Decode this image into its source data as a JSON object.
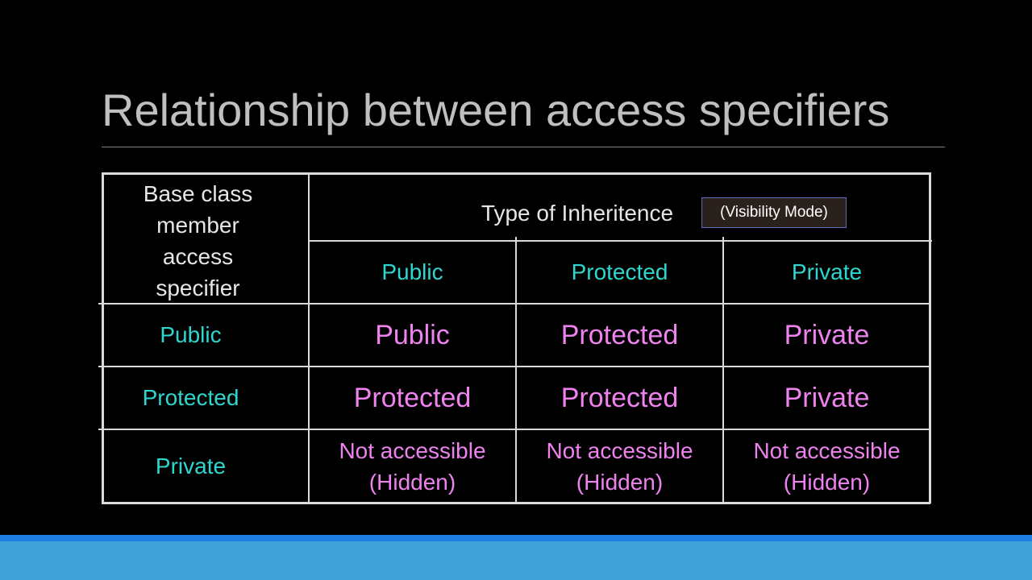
{
  "slide": {
    "title": "Relationship between access specifiers",
    "badge": "(Visibility Mode)",
    "colors": {
      "background": "#000000",
      "title": "#bfbfbf",
      "header_text": "#e6e6e6",
      "cyan_text": "#2fd6cf",
      "pink_text": "#ee82ee",
      "footer_stripe": "#1e7fe0",
      "footer_bar": "#41a4d8"
    }
  },
  "table": {
    "corner_header": [
      "Base class",
      "member",
      "access",
      "specifier"
    ],
    "group_header": "Type of Inheritence",
    "columns": [
      "Public",
      "Protected",
      "Private"
    ],
    "rows": [
      {
        "label": "Public",
        "cells": [
          {
            "line1": "Public",
            "line2": ""
          },
          {
            "line1": "Protected",
            "line2": ""
          },
          {
            "line1": "Private",
            "line2": ""
          }
        ]
      },
      {
        "label": "Protected",
        "cells": [
          {
            "line1": "Protected",
            "line2": ""
          },
          {
            "line1": "Protected",
            "line2": ""
          },
          {
            "line1": "Private",
            "line2": ""
          }
        ]
      },
      {
        "label": "Private",
        "cells": [
          {
            "line1": "Not accessible",
            "line2": "(Hidden)"
          },
          {
            "line1": "Not accessible",
            "line2": "(Hidden)"
          },
          {
            "line1": "Not accessible",
            "line2": "(Hidden)"
          }
        ]
      }
    ]
  }
}
